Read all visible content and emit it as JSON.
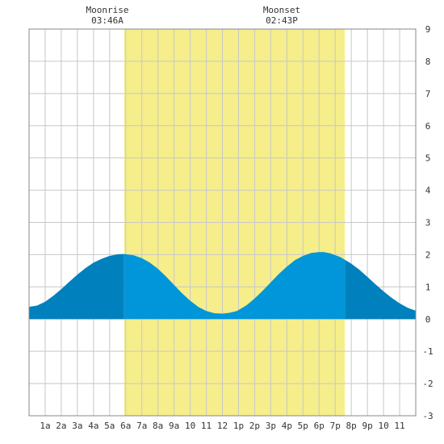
{
  "chart_data": {
    "type": "area",
    "title": "",
    "xlabel": "",
    "ylabel": "",
    "x_tick_labels": [
      "1a",
      "2a",
      "3a",
      "4a",
      "5a",
      "6a",
      "7a",
      "8a",
      "9a",
      "10",
      "11",
      "12",
      "1p",
      "2p",
      "3p",
      "4p",
      "5p",
      "6p",
      "7p",
      "8p",
      "9p",
      "10",
      "11"
    ],
    "x_range_hours": [
      0,
      24
    ],
    "ylim": [
      -3,
      9
    ],
    "y_ticks": [
      -3,
      -2,
      -1,
      0,
      1,
      2,
      3,
      4,
      5,
      6,
      7,
      8,
      9
    ],
    "grid": true,
    "daylight": {
      "start_hour": 5.9,
      "end_hour": 19.6
    },
    "moon": {
      "rise_label": "Moonrise",
      "rise_time": "03:46A",
      "set_label": "Moonset",
      "set_time": "02:43P"
    },
    "tide_series": {
      "name": "",
      "x": [
        0,
        0.5,
        1,
        1.5,
        2,
        2.5,
        3,
        3.5,
        4,
        4.5,
        5,
        5.5,
        5.9,
        6.5,
        7,
        7.5,
        8,
        8.5,
        9,
        9.5,
        10,
        10.5,
        11,
        11.5,
        12,
        12.4,
        12.9,
        13.5,
        14,
        14.5,
        15,
        15.5,
        16,
        16.5,
        17,
        17.5,
        18,
        18.3,
        18.7,
        19.3,
        20,
        20.5,
        21,
        21.5,
        22,
        22.5,
        23,
        23.5,
        24
      ],
      "y": [
        0.38,
        0.42,
        0.54,
        0.72,
        0.93,
        1.16,
        1.38,
        1.58,
        1.75,
        1.87,
        1.96,
        2.01,
        2.02,
        1.98,
        1.89,
        1.75,
        1.56,
        1.32,
        1.06,
        0.8,
        0.57,
        0.38,
        0.25,
        0.18,
        0.17,
        0.19,
        0.25,
        0.43,
        0.64,
        0.88,
        1.14,
        1.4,
        1.63,
        1.83,
        1.96,
        2.05,
        2.08,
        2.08,
        2.04,
        1.93,
        1.72,
        1.53,
        1.31,
        1.08,
        0.86,
        0.66,
        0.49,
        0.35,
        0.26
      ]
    },
    "colors": {
      "daylight": "#f5ee8b",
      "tide_night": "#0080bd",
      "tide_day": "#0096d9",
      "grid": "#c8c8c8",
      "frame": "#888888"
    }
  }
}
